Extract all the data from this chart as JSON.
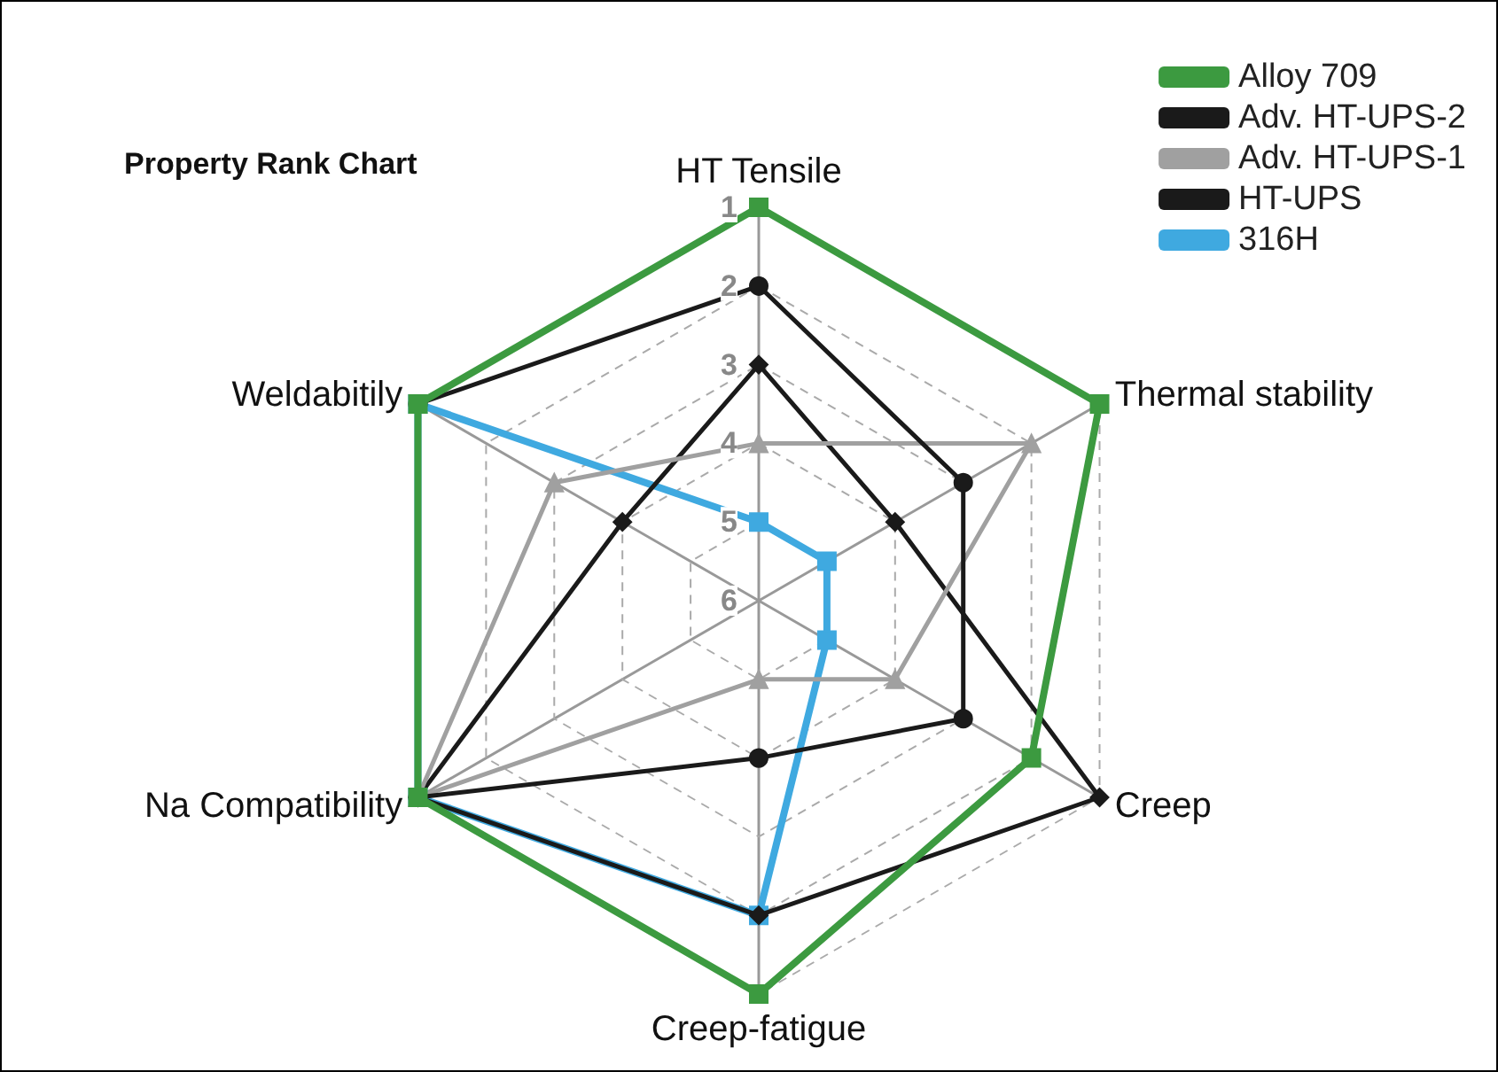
{
  "chart_data": {
    "type": "radar",
    "title": "Property Rank Chart",
    "categories": [
      "HT Tensile",
      "Thermal stability",
      "Creep",
      "Creep-fatigue",
      "Na Compatibility",
      "Weldabitily"
    ],
    "ylim": [
      6,
      1
    ],
    "yticks": [
      1,
      2,
      3,
      4,
      5,
      6
    ],
    "grid": true,
    "legend": "top right",
    "line_style": "solid",
    "series": [
      {
        "name": "Alloy 709",
        "color": "#3c9a40",
        "marker": "square",
        "values": [
          1,
          1,
          2,
          1,
          1,
          1
        ]
      },
      {
        "name": "Adv. HT-UPS-2",
        "color": "#1a1a1a",
        "marker": "circle",
        "values": [
          2,
          3,
          3,
          4,
          1,
          1
        ]
      },
      {
        "name": "Adv. HT-UPS-1",
        "color": "#a0a0a0",
        "marker": "triangle",
        "values": [
          4,
          2,
          4,
          5,
          1,
          3
        ]
      },
      {
        "name": "HT-UPS",
        "color": "#1a1a1a",
        "marker": "diamond",
        "values": [
          3,
          4,
          1,
          2,
          1,
          4
        ]
      },
      {
        "name": "316H",
        "color": "#3fa9e0",
        "marker": "square",
        "values": [
          5,
          5,
          5,
          2,
          1,
          1
        ]
      }
    ]
  }
}
